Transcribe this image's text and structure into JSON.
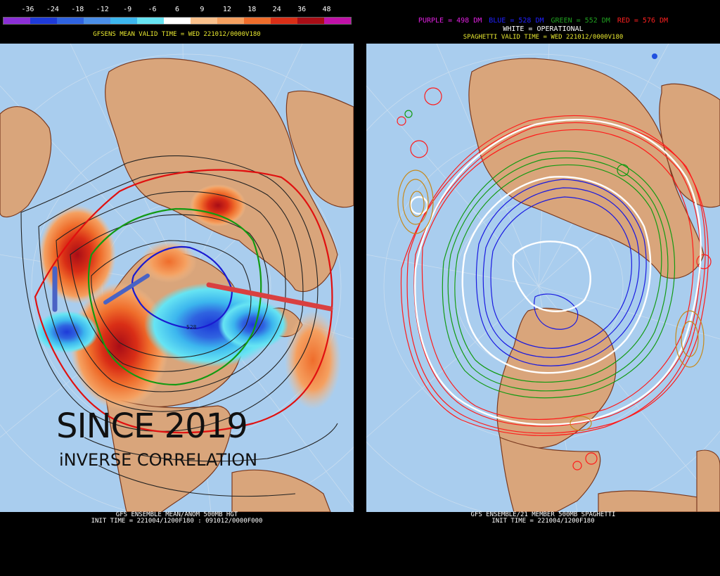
{
  "left": {
    "colorbar": {
      "ticks": [
        "-36",
        "-24",
        "-18",
        "-12",
        "-9",
        "-6",
        "6",
        "9",
        "12",
        "18",
        "24",
        "36",
        "48"
      ],
      "colors": [
        "#8b2fd6",
        "#1e3ad8",
        "#2f63e0",
        "#4a8ee8",
        "#3cb6ee",
        "#66e4f3",
        "#ffffff",
        "#f9c08c",
        "#f5a060",
        "#ef6d2b",
        "#d92e16",
        "#a80d16",
        "#c011a8"
      ]
    },
    "valid_time": "GFSENS MEAN VALID TIME = WED 221012/0000V180",
    "footer_line1": "GFS ENSEMBLE MEAN/ANOM 500MB HGT",
    "footer_line2": "INIT TIME = 221004/1200F180 : 091012/0000F000",
    "overlay_title": "SINCE 2019",
    "overlay_subtitle": "iNVERSE CORRELATION",
    "contour_label": "528"
  },
  "right": {
    "legend": [
      {
        "text": "PURPLE = 498 DM",
        "color": "#e020e0"
      },
      {
        "text": "BLUE = 528 DM",
        "color": "#2020ff"
      },
      {
        "text": "GREEN = 552 DM",
        "color": "#20a020"
      },
      {
        "text": "RED = 576 DM",
        "color": "#ff2020"
      }
    ],
    "white_line": "WHITE = OPERATIONAL",
    "valid_time": "SPAGHETTI VALID TIME = WED 221012/0000V180",
    "footer_line1": "GFS ENSEMBLE/21 MEMBER 500MB SPAGHETTI",
    "footer_line2": "INIT TIME = 221004/1200F180"
  },
  "colors": {
    "ocean": "#a9cdee",
    "land": "#d9a57b",
    "border": "#7a3a20",
    "header_yellow": "#e8e830"
  }
}
